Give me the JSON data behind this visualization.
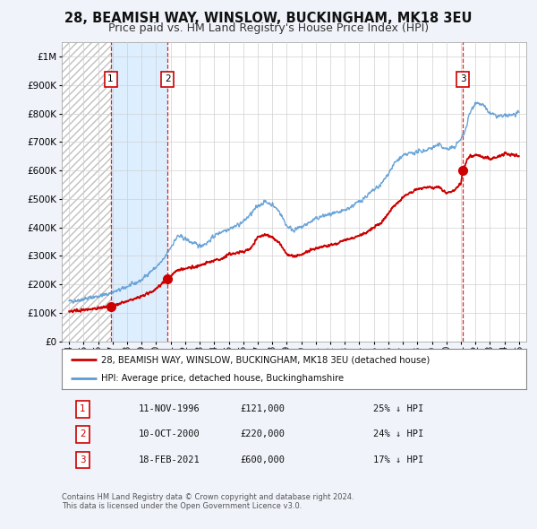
{
  "title_line1": "28, BEAMISH WAY, WINSLOW, BUCKINGHAM, MK18 3EU",
  "title_line2": "Price paid vs. HM Land Registry's House Price Index (HPI)",
  "title_fontsize": 10.5,
  "subtitle_fontsize": 9,
  "hpi_color": "#5b9bd5",
  "price_color": "#cc0000",
  "marker_color": "#cc0000",
  "sale_dates": [
    1996.867,
    2000.783,
    2021.124
  ],
  "sale_prices": [
    121000,
    220000,
    600000
  ],
  "sale_labels": [
    "1",
    "2",
    "3"
  ],
  "vline_dates": [
    1996.867,
    2000.783,
    2021.124
  ],
  "legend_price_label": "28, BEAMISH WAY, WINSLOW, BUCKINGHAM, MK18 3EU (detached house)",
  "legend_hpi_label": "HPI: Average price, detached house, Buckinghamshire",
  "table_rows": [
    [
      "1",
      "11-NOV-1996",
      "£121,000",
      "25% ↓ HPI"
    ],
    [
      "2",
      "10-OCT-2000",
      "£220,000",
      "24% ↓ HPI"
    ],
    [
      "3",
      "18-FEB-2021",
      "£600,000",
      "17% ↓ HPI"
    ]
  ],
  "footnote": "Contains HM Land Registry data © Crown copyright and database right 2024.\nThis data is licensed under the Open Government Licence v3.0.",
  "ylim": [
    0,
    1050000
  ],
  "yticks": [
    0,
    100000,
    200000,
    300000,
    400000,
    500000,
    600000,
    700000,
    800000,
    900000,
    1000000
  ],
  "ytick_labels": [
    "£0",
    "£100K",
    "£200K",
    "£300K",
    "£400K",
    "£500K",
    "£600K",
    "£700K",
    "£800K",
    "£900K",
    "£1M"
  ],
  "xlim_start": 1993.5,
  "xlim_end": 2025.5,
  "xticks": [
    1994,
    1995,
    1996,
    1997,
    1998,
    1999,
    2000,
    2001,
    2002,
    2003,
    2004,
    2005,
    2006,
    2007,
    2008,
    2009,
    2010,
    2011,
    2012,
    2013,
    2014,
    2015,
    2016,
    2017,
    2018,
    2019,
    2020,
    2021,
    2022,
    2023,
    2024,
    2025
  ],
  "background_color": "#f0f4fa",
  "plot_bg_color": "#ffffff",
  "grid_color": "#d0d0d0",
  "hatch_color": "#c0c0c0",
  "shaded_region_color": "#ddeeff"
}
